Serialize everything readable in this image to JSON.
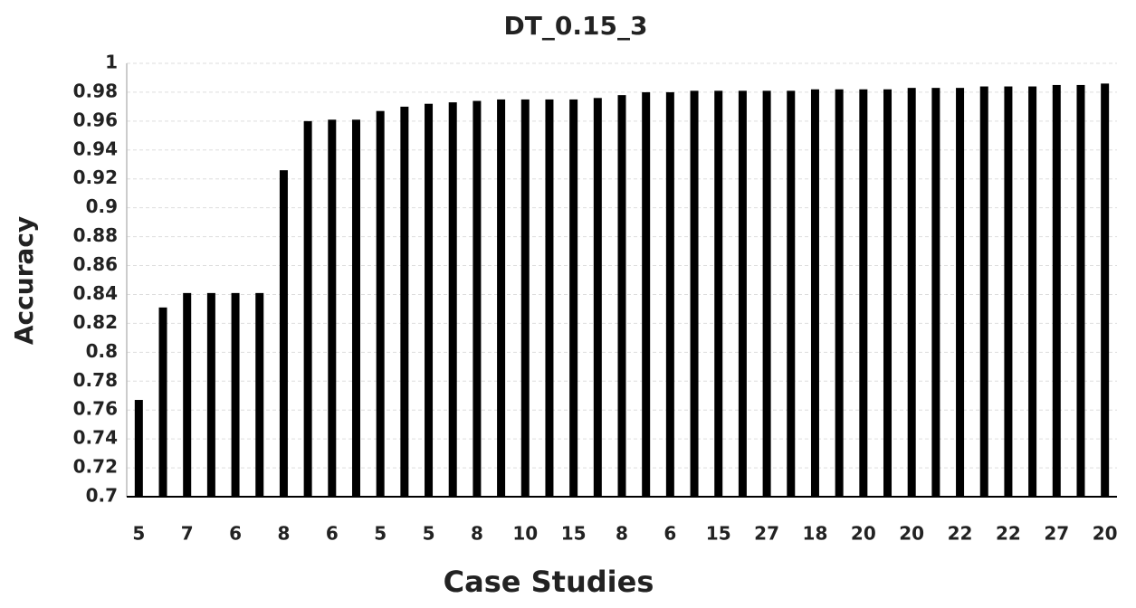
{
  "chart_data": {
    "type": "bar",
    "title": "DT_0.15_3",
    "x_label": "Case Studies",
    "y_label": "Accuracy",
    "categories": [
      "5",
      null,
      "7",
      null,
      "6",
      null,
      "8",
      null,
      "6",
      null,
      "5",
      null,
      "5",
      null,
      "8",
      null,
      "10",
      null,
      "15",
      null,
      "8",
      null,
      "6",
      null,
      "15",
      null,
      "27",
      null,
      "18",
      null,
      "20",
      null,
      "20",
      null,
      "22",
      null,
      "22",
      null,
      "27",
      null,
      "20"
    ],
    "values": [
      0.767,
      0.831,
      0.841,
      0.841,
      0.841,
      0.841,
      0.926,
      0.96,
      0.961,
      0.961,
      0.967,
      0.97,
      0.972,
      0.973,
      0.974,
      0.975,
      0.975,
      0.975,
      0.975,
      0.976,
      0.978,
      0.98,
      0.98,
      0.981,
      0.981,
      0.981,
      0.981,
      0.981,
      0.982,
      0.982,
      0.982,
      0.982,
      0.983,
      0.983,
      0.983,
      0.984,
      0.984,
      0.984,
      0.985,
      0.985,
      0.986
    ],
    "color": "#000000",
    "ylim": [
      0.7,
      1
    ],
    "yticks": [
      0.7,
      0.72,
      0.74,
      0.76,
      0.78,
      0.8,
      0.82,
      0.84,
      0.86,
      0.88,
      0.9,
      0.92,
      0.94,
      0.96,
      0.98,
      1
    ],
    "grid": true
  }
}
